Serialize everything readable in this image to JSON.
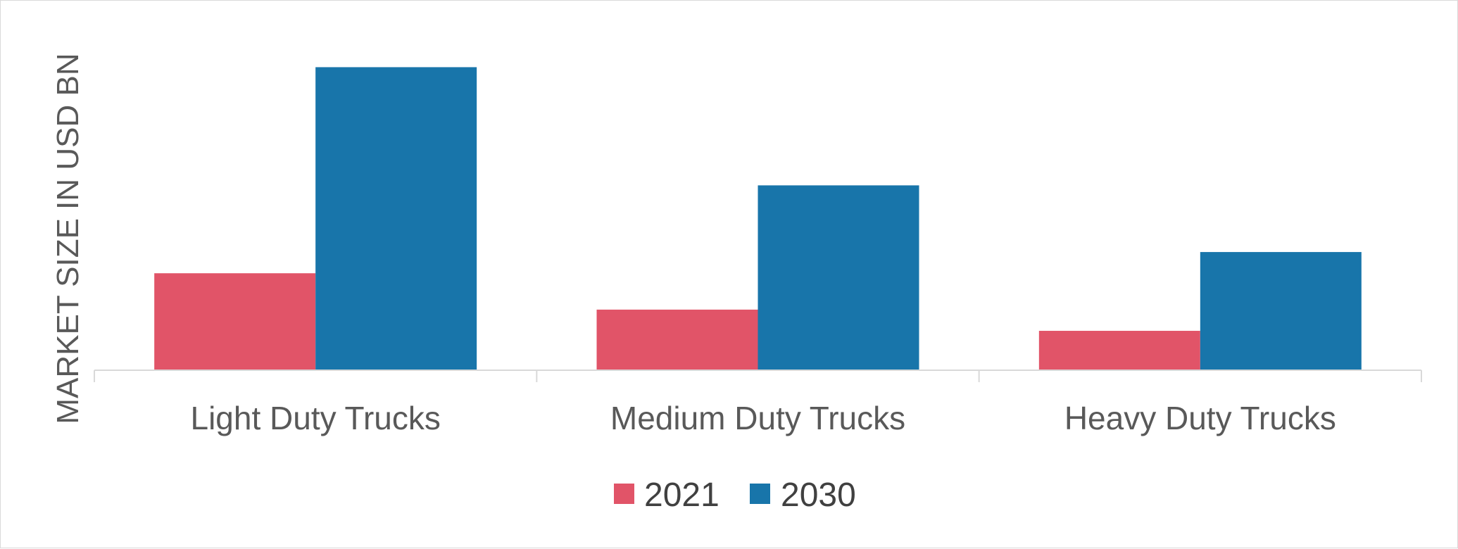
{
  "chart_data": {
    "type": "bar",
    "categories": [
      "Light Duty Trucks",
      "Medium Duty Trucks",
      "Heavy Duty Trucks"
    ],
    "series": [
      {
        "name": "2021",
        "color": "#e15468",
        "values": [
          3.2,
          2.0,
          1.3
        ]
      },
      {
        "name": "2030",
        "color": "#1875aa",
        "values": [
          10.0,
          6.1,
          3.9
        ]
      }
    ],
    "title": "",
    "xlabel": "",
    "ylabel": "MARKET SIZE IN USD BN",
    "ylim": [
      0,
      10.8
    ],
    "grid": false,
    "legend_position": "bottom"
  }
}
